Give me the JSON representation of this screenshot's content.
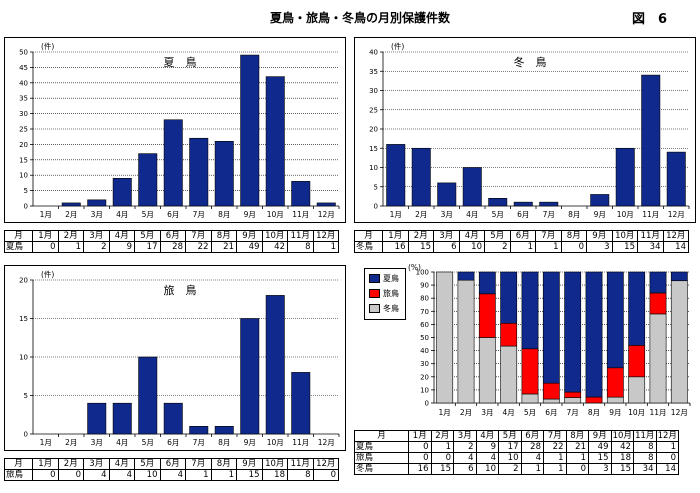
{
  "header": {
    "title": "夏鳥・旅鳥・冬鳥の月別保護件数",
    "figure": "図　6"
  },
  "colors": {
    "summer": "#0f2a8c",
    "passage": "#ff0000",
    "winter": "#c8c8c8"
  },
  "months": [
    "1月",
    "2月",
    "3月",
    "4月",
    "5月",
    "6月",
    "7月",
    "8月",
    "9月",
    "10月",
    "11月",
    "12月"
  ],
  "table_month_header": "月",
  "chart_data": [
    {
      "type": "bar",
      "title": "夏　鳥",
      "unit_label": "(件)",
      "categories": [
        "1月",
        "2月",
        "3月",
        "4月",
        "5月",
        "6月",
        "7月",
        "8月",
        "9月",
        "10月",
        "11月",
        "12月"
      ],
      "series": [
        {
          "name": "夏鳥",
          "values": [
            0,
            1,
            2,
            9,
            17,
            28,
            22,
            21,
            49,
            42,
            8,
            1
          ]
        }
      ],
      "ylim": [
        0,
        50
      ],
      "yticks": [
        0,
        5,
        10,
        15,
        20,
        25,
        30,
        35,
        40,
        45,
        50
      ],
      "grid": true
    },
    {
      "type": "bar",
      "title": "冬　鳥",
      "unit_label": "(件)",
      "categories": [
        "1月",
        "2月",
        "3月",
        "4月",
        "5月",
        "6月",
        "7月",
        "8月",
        "9月",
        "10月",
        "11月",
        "12月"
      ],
      "series": [
        {
          "name": "冬鳥",
          "values": [
            16,
            15,
            6,
            10,
            2,
            1,
            1,
            0,
            3,
            15,
            34,
            14
          ]
        }
      ],
      "ylim": [
        0,
        40
      ],
      "yticks": [
        0,
        5,
        10,
        15,
        20,
        25,
        30,
        35,
        40
      ],
      "grid": true
    },
    {
      "type": "bar",
      "title": "旅　鳥",
      "unit_label": "(件)",
      "categories": [
        "1月",
        "2月",
        "3月",
        "4月",
        "5月",
        "6月",
        "7月",
        "8月",
        "9月",
        "10月",
        "11月",
        "12月"
      ],
      "series": [
        {
          "name": "旅鳥",
          "values": [
            0,
            0,
            4,
            4,
            10,
            4,
            1,
            1,
            15,
            18,
            8,
            0
          ]
        }
      ],
      "ylim": [
        0,
        20
      ],
      "yticks": [
        0,
        5,
        10,
        15,
        20
      ],
      "grid": true
    },
    {
      "type": "bar",
      "stacked": "percent",
      "unit_label": "(%)",
      "categories": [
        "1月",
        "2月",
        "3月",
        "4月",
        "5月",
        "6月",
        "7月",
        "8月",
        "9月",
        "10月",
        "11月",
        "12月"
      ],
      "series": [
        {
          "name": "冬鳥",
          "values": [
            16,
            15,
            6,
            10,
            2,
            1,
            1,
            0,
            3,
            15,
            34,
            14
          ]
        },
        {
          "name": "旅鳥",
          "values": [
            0,
            0,
            4,
            4,
            10,
            4,
            1,
            1,
            15,
            18,
            8,
            0
          ]
        },
        {
          "name": "夏鳥",
          "values": [
            0,
            1,
            2,
            9,
            17,
            28,
            22,
            21,
            49,
            42,
            8,
            1
          ]
        }
      ],
      "legend": [
        "夏鳥",
        "旅鳥",
        "冬鳥"
      ],
      "legend_position": "top-left",
      "ylim": [
        0,
        100
      ],
      "yticks": [
        0,
        10,
        20,
        30,
        40,
        50,
        60,
        70,
        80,
        90,
        100
      ],
      "grid": true
    }
  ]
}
